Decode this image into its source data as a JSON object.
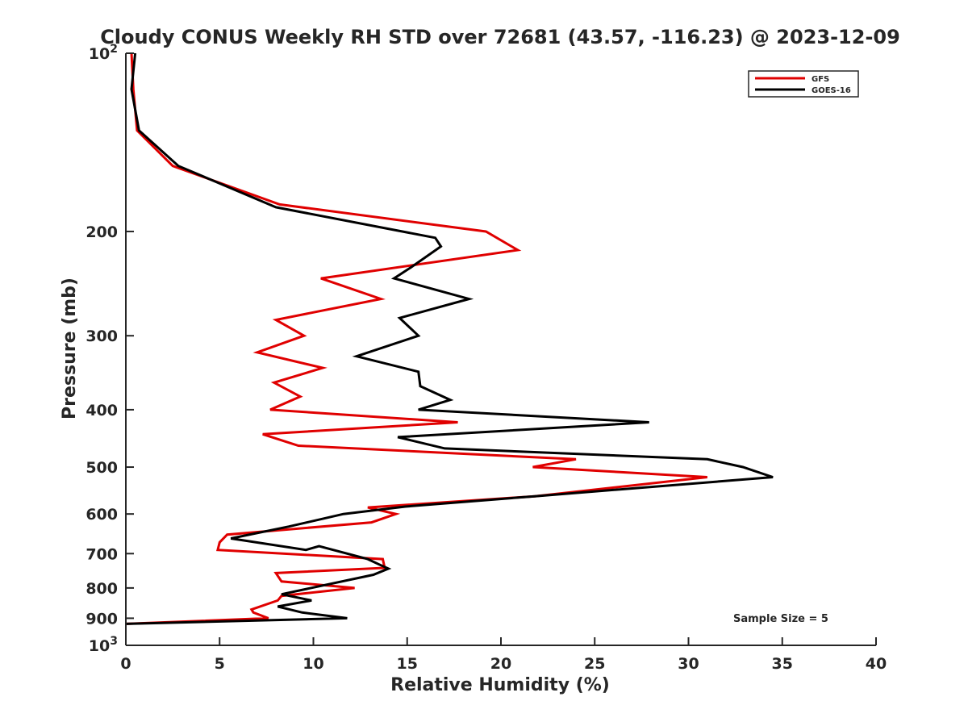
{
  "chart_data": {
    "type": "line",
    "title": "Cloudy CONUS Weekly RH STD over 72681 (43.57, -116.23) @ 2023-12-09",
    "xlabel": "Relative Humidity (%)",
    "ylabel": "Pressure (mb)",
    "xlim": [
      0,
      40
    ],
    "ylim": [
      100,
      1000
    ],
    "y_scale": "log",
    "y_reversed": true,
    "grid": false,
    "x_ticks": [
      0,
      5,
      10,
      15,
      20,
      25,
      30,
      35,
      40
    ],
    "y_ticks": [
      {
        "value": 100,
        "base": "10",
        "exp": "2"
      },
      {
        "value": 200,
        "label": "200"
      },
      {
        "value": 300,
        "label": "300"
      },
      {
        "value": 400,
        "label": "400"
      },
      {
        "value": 500,
        "label": "500"
      },
      {
        "value": 600,
        "label": "600"
      },
      {
        "value": 700,
        "label": "700"
      },
      {
        "value": 800,
        "label": "800"
      },
      {
        "value": 900,
        "label": "900"
      },
      {
        "value": 1000,
        "base": "10",
        "exp": "3"
      }
    ],
    "legend_position": "top-right",
    "series": [
      {
        "name": "GFS",
        "color": "#e00000",
        "points": [
          [
            0.3,
            100
          ],
          [
            0.4,
            115
          ],
          [
            0.6,
            135
          ],
          [
            2.5,
            155
          ],
          [
            8.2,
            180
          ],
          [
            19.2,
            200
          ],
          [
            20.9,
            215
          ],
          [
            10.4,
            240
          ],
          [
            13.6,
            260
          ],
          [
            8.0,
            282
          ],
          [
            9.5,
            300
          ],
          [
            7.0,
            320
          ],
          [
            10.5,
            340
          ],
          [
            7.9,
            360
          ],
          [
            9.3,
            380
          ],
          [
            7.7,
            400
          ],
          [
            17.7,
            420
          ],
          [
            7.3,
            440
          ],
          [
            9.2,
            460
          ],
          [
            24.0,
            485
          ],
          [
            21.7,
            500
          ],
          [
            31.0,
            520
          ],
          [
            21.8,
            560
          ],
          [
            12.9,
            585
          ],
          [
            14.4,
            600
          ],
          [
            13.1,
            620
          ],
          [
            5.4,
            650
          ],
          [
            5.0,
            670
          ],
          [
            4.9,
            690
          ],
          [
            13.7,
            715
          ],
          [
            13.8,
            740
          ],
          [
            8.0,
            755
          ],
          [
            8.3,
            780
          ],
          [
            12.2,
            800
          ],
          [
            8.3,
            825
          ],
          [
            8.1,
            840
          ],
          [
            6.7,
            870
          ],
          [
            6.8,
            880
          ],
          [
            7.6,
            900
          ],
          [
            0.0,
            920
          ]
        ]
      },
      {
        "name": "GOES-16",
        "color": "#000000",
        "points": [
          [
            0.5,
            100
          ],
          [
            0.3,
            115
          ],
          [
            0.7,
            135
          ],
          [
            2.8,
            155
          ],
          [
            8.0,
            182
          ],
          [
            16.5,
            205
          ],
          [
            16.8,
            212
          ],
          [
            15.2,
            230
          ],
          [
            14.3,
            240
          ],
          [
            18.3,
            260
          ],
          [
            14.6,
            280
          ],
          [
            15.6,
            300
          ],
          [
            12.3,
            325
          ],
          [
            15.6,
            345
          ],
          [
            15.7,
            365
          ],
          [
            17.3,
            385
          ],
          [
            15.6,
            400
          ],
          [
            27.9,
            420
          ],
          [
            14.5,
            445
          ],
          [
            17.0,
            465
          ],
          [
            31.0,
            485
          ],
          [
            32.9,
            500
          ],
          [
            34.5,
            520
          ],
          [
            21.8,
            560
          ],
          [
            14.9,
            583
          ],
          [
            11.6,
            600
          ],
          [
            8.7,
            630
          ],
          [
            5.6,
            660
          ],
          [
            9.6,
            690
          ],
          [
            10.3,
            680
          ],
          [
            12.9,
            715
          ],
          [
            13.5,
            730
          ],
          [
            14.0,
            742
          ],
          [
            13.2,
            760
          ],
          [
            8.3,
            820
          ],
          [
            9.9,
            840
          ],
          [
            8.1,
            860
          ],
          [
            9.4,
            880
          ],
          [
            11.8,
            900
          ],
          [
            0.0,
            920
          ]
        ]
      }
    ],
    "annotation": "Sample Size = 5"
  }
}
